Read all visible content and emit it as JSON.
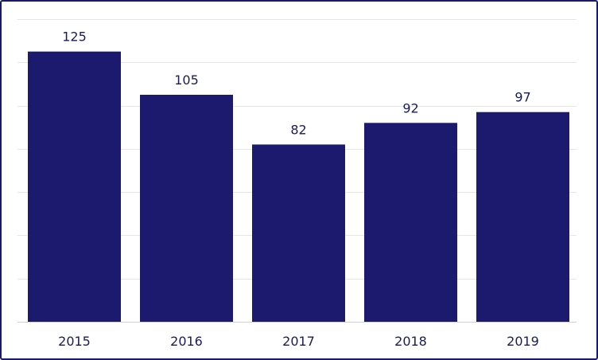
{
  "chart_data": {
    "type": "bar",
    "title": "",
    "xlabel": "",
    "ylabel": "",
    "categories": [
      "2015",
      "2016",
      "2017",
      "2018",
      "2019"
    ],
    "values": [
      125,
      105,
      82,
      92,
      97
    ],
    "data_labels": [
      "125",
      "105",
      "82",
      "92",
      "97"
    ],
    "ylim": [
      0,
      140
    ],
    "y_axis_labels_shown": false,
    "grid": true,
    "legend": "none",
    "bar_color": "#1c1a6e",
    "text_color": "#1a1a5e",
    "border_color": "#1a1a6b"
  }
}
